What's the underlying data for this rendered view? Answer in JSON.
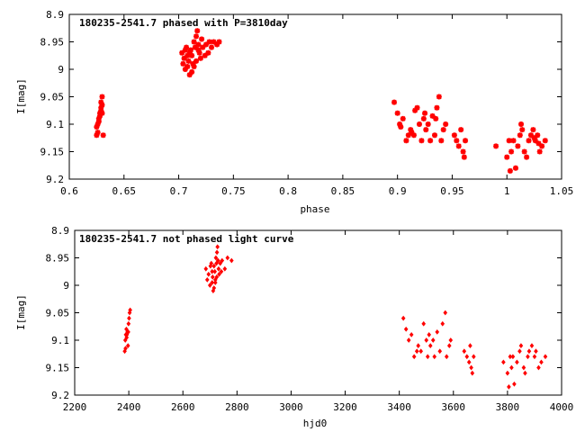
{
  "chart_data": [
    {
      "type": "scatter",
      "title": "180235-2541.7 phased with P=3810day",
      "xlabel": "phase",
      "ylabel": "I[mag]",
      "xlim": [
        0.6,
        1.05
      ],
      "ylim": [
        9.2,
        8.9
      ],
      "y_inverted": true,
      "xticks": [
        "0.6",
        "0.65",
        "0.7",
        "0.75",
        "0.8",
        "0.85",
        "0.9",
        "0.95",
        "1",
        "1.05"
      ],
      "yticks": [
        "8.9",
        "8.95",
        "9",
        "9.05",
        "9.1",
        "9.15",
        "9.2"
      ],
      "grid": false,
      "marker": "star",
      "color": "#ff0000",
      "points": [
        [
          0.625,
          9.12
        ],
        [
          0.626,
          9.1
        ],
        [
          0.627,
          9.09
        ],
        [
          0.628,
          9.08
        ],
        [
          0.629,
          9.07
        ],
        [
          0.63,
          9.05
        ],
        [
          0.626,
          9.115
        ],
        [
          0.628,
          9.085
        ],
        [
          0.629,
          9.075
        ],
        [
          0.63,
          9.065
        ],
        [
          0.631,
          9.12
        ],
        [
          0.627,
          9.095
        ],
        [
          0.629,
          9.06
        ],
        [
          0.625,
          9.105
        ],
        [
          0.63,
          9.08
        ],
        [
          0.703,
          8.97
        ],
        [
          0.704,
          8.99
        ],
        [
          0.705,
          8.98
        ],
        [
          0.706,
          9.0
        ],
        [
          0.707,
          8.96
        ],
        [
          0.708,
          8.975
        ],
        [
          0.709,
          8.985
        ],
        [
          0.71,
          9.01
        ],
        [
          0.711,
          8.965
        ],
        [
          0.712,
          8.975
        ],
        [
          0.713,
          8.99
        ],
        [
          0.714,
          8.95
        ],
        [
          0.715,
          8.96
        ],
        [
          0.716,
          8.94
        ],
        [
          0.717,
          8.93
        ],
        [
          0.718,
          8.955
        ],
        [
          0.719,
          8.97
        ],
        [
          0.72,
          8.98
        ],
        [
          0.722,
          8.96
        ],
        [
          0.724,
          8.975
        ],
        [
          0.725,
          8.955
        ],
        [
          0.727,
          8.97
        ],
        [
          0.728,
          8.95
        ],
        [
          0.73,
          8.96
        ],
        [
          0.732,
          8.95
        ],
        [
          0.735,
          8.955
        ],
        [
          0.737,
          8.95
        ],
        [
          0.712,
          9.005
        ],
        [
          0.714,
          8.995
        ],
        [
          0.716,
          8.985
        ],
        [
          0.718,
          8.965
        ],
        [
          0.706,
          8.965
        ],
        [
          0.708,
          8.995
        ],
        [
          0.71,
          8.97
        ],
        [
          0.721,
          8.945
        ],
        [
          0.897,
          9.06
        ],
        [
          0.9,
          9.08
        ],
        [
          0.902,
          9.1
        ],
        [
          0.905,
          9.09
        ],
        [
          0.908,
          9.13
        ],
        [
          0.91,
          9.12
        ],
        [
          0.912,
          9.11
        ],
        [
          0.915,
          9.12
        ],
        [
          0.918,
          9.07
        ],
        [
          0.92,
          9.1
        ],
        [
          0.922,
          9.13
        ],
        [
          0.924,
          9.09
        ],
        [
          0.926,
          9.11
        ],
        [
          0.928,
          9.1
        ],
        [
          0.93,
          9.13
        ],
        [
          0.932,
          9.085
        ],
        [
          0.934,
          9.12
        ],
        [
          0.936,
          9.07
        ],
        [
          0.938,
          9.05
        ],
        [
          0.94,
          9.13
        ],
        [
          0.942,
          9.11
        ],
        [
          0.944,
          9.1
        ],
        [
          0.916,
          9.075
        ],
        [
          0.925,
          9.08
        ],
        [
          0.935,
          9.09
        ],
        [
          0.903,
          9.105
        ],
        [
          0.913,
          9.115
        ],
        [
          0.952,
          9.12
        ],
        [
          0.954,
          9.13
        ],
        [
          0.956,
          9.14
        ],
        [
          0.958,
          9.11
        ],
        [
          0.96,
          9.15
        ],
        [
          0.961,
          9.16
        ],
        [
          0.962,
          9.13
        ],
        [
          0.99,
          9.14
        ],
        [
          1.0,
          9.16
        ],
        [
          1.002,
          9.13
        ],
        [
          1.004,
          9.15
        ],
        [
          1.006,
          9.13
        ],
        [
          1.008,
          9.18
        ],
        [
          1.01,
          9.14
        ],
        [
          1.012,
          9.12
        ],
        [
          1.014,
          9.11
        ],
        [
          1.016,
          9.15
        ],
        [
          1.018,
          9.16
        ],
        [
          1.02,
          9.13
        ],
        [
          1.022,
          9.12
        ],
        [
          1.024,
          9.11
        ],
        [
          1.026,
          9.13
        ],
        [
          1.028,
          9.12
        ],
        [
          1.03,
          9.15
        ],
        [
          1.032,
          9.14
        ],
        [
          1.035,
          9.13
        ],
        [
          1.003,
          9.185
        ],
        [
          1.013,
          9.1
        ],
        [
          1.025,
          9.125
        ],
        [
          1.029,
          9.135
        ]
      ]
    },
    {
      "type": "scatter",
      "title": "180235-2541.7 not phased light curve",
      "xlabel": "hjd0",
      "ylabel": "I[mag]",
      "xlim": [
        2200,
        4000
      ],
      "ylim": [
        9.2,
        8.9
      ],
      "y_inverted": true,
      "xticks": [
        "2200",
        "2400",
        "2600",
        "2800",
        "3000",
        "3200",
        "3400",
        "3600",
        "3800",
        "4000"
      ],
      "yticks": [
        "8.9",
        "8.95",
        "9",
        "9.05",
        "9.1",
        "9.15",
        "9.2"
      ],
      "grid": false,
      "marker": "diamond",
      "color": "#ff0000",
      "points": [
        [
          2385,
          9.12
        ],
        [
          2387,
          9.1
        ],
        [
          2389,
          9.09
        ],
        [
          2391,
          9.08
        ],
        [
          2393,
          9.09
        ],
        [
          2395,
          9.085
        ],
        [
          2397,
          9.11
        ],
        [
          2399,
          9.07
        ],
        [
          2401,
          9.06
        ],
        [
          2403,
          9.05
        ],
        [
          2405,
          9.045
        ],
        [
          2388,
          9.115
        ],
        [
          2392,
          9.095
        ],
        [
          2398,
          9.085
        ],
        [
          2685,
          8.97
        ],
        [
          2690,
          8.99
        ],
        [
          2695,
          8.98
        ],
        [
          2700,
          9.0
        ],
        [
          2705,
          8.96
        ],
        [
          2708,
          8.975
        ],
        [
          2710,
          8.985
        ],
        [
          2712,
          9.01
        ],
        [
          2715,
          8.965
        ],
        [
          2718,
          8.975
        ],
        [
          2720,
          8.99
        ],
        [
          2722,
          8.95
        ],
        [
          2724,
          8.96
        ],
        [
          2726,
          8.94
        ],
        [
          2728,
          8.93
        ],
        [
          2730,
          8.955
        ],
        [
          2732,
          8.97
        ],
        [
          2734,
          8.98
        ],
        [
          2738,
          8.96
        ],
        [
          2742,
          8.975
        ],
        [
          2745,
          8.955
        ],
        [
          2755,
          8.97
        ],
        [
          2765,
          8.95
        ],
        [
          2780,
          8.955
        ],
        [
          2715,
          9.005
        ],
        [
          2720,
          8.995
        ],
        [
          2725,
          8.985
        ],
        [
          2702,
          8.965
        ],
        [
          2708,
          8.995
        ],
        [
          3415,
          9.06
        ],
        [
          3425,
          9.08
        ],
        [
          3435,
          9.1
        ],
        [
          3445,
          9.09
        ],
        [
          3455,
          9.13
        ],
        [
          3465,
          9.12
        ],
        [
          3470,
          9.11
        ],
        [
          3480,
          9.12
        ],
        [
          3490,
          9.07
        ],
        [
          3500,
          9.1
        ],
        [
          3505,
          9.13
        ],
        [
          3510,
          9.09
        ],
        [
          3515,
          9.11
        ],
        [
          3525,
          9.1
        ],
        [
          3530,
          9.13
        ],
        [
          3540,
          9.085
        ],
        [
          3550,
          9.12
        ],
        [
          3560,
          9.07
        ],
        [
          3570,
          9.05
        ],
        [
          3575,
          9.13
        ],
        [
          3585,
          9.11
        ],
        [
          3590,
          9.1
        ],
        [
          3640,
          9.12
        ],
        [
          3650,
          9.13
        ],
        [
          3658,
          9.14
        ],
        [
          3662,
          9.11
        ],
        [
          3666,
          9.15
        ],
        [
          3670,
          9.16
        ],
        [
          3675,
          9.13
        ],
        [
          3785,
          9.14
        ],
        [
          3800,
          9.16
        ],
        [
          3810,
          9.13
        ],
        [
          3815,
          9.15
        ],
        [
          3820,
          9.13
        ],
        [
          3825,
          9.18
        ],
        [
          3835,
          9.14
        ],
        [
          3845,
          9.12
        ],
        [
          3850,
          9.11
        ],
        [
          3860,
          9.15
        ],
        [
          3865,
          9.16
        ],
        [
          3875,
          9.13
        ],
        [
          3880,
          9.12
        ],
        [
          3890,
          9.11
        ],
        [
          3900,
          9.13
        ],
        [
          3905,
          9.12
        ],
        [
          3915,
          9.15
        ],
        [
          3925,
          9.14
        ],
        [
          3940,
          9.13
        ],
        [
          3805,
          9.185
        ]
      ]
    }
  ]
}
